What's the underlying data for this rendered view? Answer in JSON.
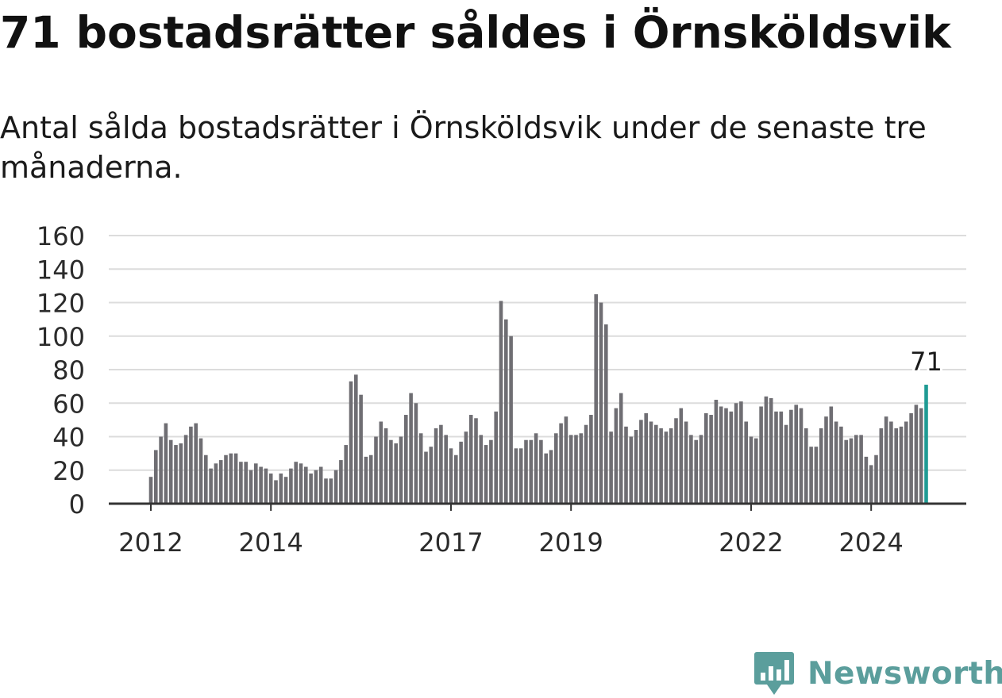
{
  "title": "71 bostadsrätter såldes i Örnsköldsvik",
  "subtitle": "Antal sålda bostadsrätter i Örnsköldsvik under de senaste tre månaderna.",
  "brand": {
    "name": "Newsworthy",
    "color": "#5b9e9c"
  },
  "chart_data": {
    "type": "bar",
    "title": "71 bostadsrätter såldes i Örnsköldsvik",
    "subtitle": "Antal sålda bostadsrätter i Örnsköldsvik under de senaste tre månaderna.",
    "xlabel": "",
    "ylabel": "",
    "ylim": [
      0,
      160
    ],
    "yticks": [
      0,
      20,
      40,
      60,
      80,
      100,
      120,
      140,
      160
    ],
    "xticks": [
      "2012",
      "2014",
      "2017",
      "2019",
      "2022",
      "2024"
    ],
    "grid": true,
    "bar_color": "#6f6e73",
    "highlight_color": "#1f9b94",
    "highlight_label": "71",
    "x_start": "2012-01",
    "x_end": "2025-01",
    "series": [
      {
        "values": [
          16,
          32,
          40,
          48,
          38,
          35,
          36,
          41,
          46,
          48,
          39,
          29,
          21,
          24,
          26,
          29,
          30,
          30,
          25,
          25,
          20,
          24,
          22,
          21,
          18,
          14,
          18,
          16,
          21,
          25,
          24,
          22,
          18,
          20,
          22,
          15,
          15,
          20,
          26,
          35,
          73,
          77,
          65,
          28,
          29,
          40,
          49,
          45,
          38,
          36,
          40,
          53,
          66,
          60,
          42,
          31,
          34,
          45,
          47,
          41,
          33,
          29,
          37,
          43,
          53,
          51,
          41,
          35,
          38,
          55,
          121,
          110,
          100,
          33,
          33,
          38,
          38,
          42,
          38,
          30,
          32,
          42,
          48,
          52,
          41,
          41,
          42,
          47,
          53,
          125,
          120,
          107,
          43,
          57,
          66,
          46,
          40,
          44,
          50,
          54,
          49,
          47,
          45,
          43,
          45,
          51,
          57,
          49,
          41,
          38,
          41,
          54,
          53,
          62,
          58,
          57,
          55,
          60,
          61,
          49,
          40,
          39,
          58,
          64,
          63,
          55,
          55,
          47,
          56,
          59,
          57,
          45,
          34,
          34,
          45,
          52,
          58,
          49,
          46,
          38,
          39,
          41,
          41,
          28,
          23,
          29,
          45,
          52,
          49,
          45,
          46,
          49,
          54,
          59,
          57,
          71
        ]
      }
    ]
  }
}
